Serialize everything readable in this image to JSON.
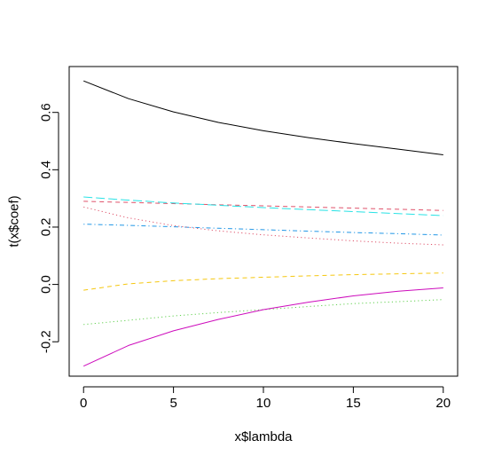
{
  "chart_data": {
    "type": "line",
    "title": "",
    "xlabel": "x$lambda",
    "ylabel": "t(x$coef)",
    "xlim": [
      -0.8,
      20.8
    ],
    "ylim": [
      -0.32,
      0.76
    ],
    "x_ticks": [
      0,
      5,
      10,
      15,
      20
    ],
    "x_tick_labels": [
      "0",
      "5",
      "10",
      "15",
      "20"
    ],
    "y_ticks": [
      -0.2,
      0.0,
      0.2,
      0.4,
      0.6
    ],
    "y_tick_labels": [
      "-0.2",
      "0.0",
      "0.2",
      "0.4",
      "0.6"
    ],
    "grid": false,
    "legend": "none",
    "x": [
      0,
      2.5,
      5,
      7.5,
      10,
      12.5,
      15,
      17.5,
      20
    ],
    "series": [
      {
        "color": "#000000",
        "dash": "solid",
        "values": [
          0.71,
          0.648,
          0.602,
          0.565,
          0.536,
          0.512,
          0.491,
          0.472,
          0.452
        ]
      },
      {
        "color": "#DF536B",
        "dash": "dashed",
        "values": [
          0.29,
          0.286,
          0.282,
          0.278,
          0.274,
          0.27,
          0.266,
          0.262,
          0.258
        ]
      },
      {
        "color": "#61D04F",
        "dash": "dotted",
        "values": [
          -0.14,
          -0.125,
          -0.11,
          -0.098,
          -0.088,
          -0.077,
          -0.067,
          -0.06,
          -0.053
        ]
      },
      {
        "color": "#2297E6",
        "dash": "dotdash",
        "values": [
          0.21,
          0.206,
          0.201,
          0.196,
          0.191,
          0.186,
          0.181,
          0.177,
          0.172
        ]
      },
      {
        "color": "#28E2E5",
        "dash": "longdash",
        "values": [
          0.305,
          0.294,
          0.284,
          0.276,
          0.268,
          0.261,
          0.254,
          0.247,
          0.24
        ]
      },
      {
        "color": "#CD0BBC",
        "dash": "solid",
        "values": [
          -0.285,
          -0.213,
          -0.162,
          -0.122,
          -0.088,
          -0.062,
          -0.04,
          -0.024,
          -0.012
        ]
      },
      {
        "color": "#F5C710",
        "dash": "dashed",
        "values": [
          -0.02,
          0.002,
          0.013,
          0.02,
          0.025,
          0.03,
          0.034,
          0.037,
          0.04
        ]
      },
      {
        "color": "#DF536B",
        "dash": "dotted",
        "values": [
          0.27,
          0.232,
          0.205,
          0.187,
          0.173,
          0.162,
          0.152,
          0.144,
          0.138
        ]
      }
    ]
  }
}
